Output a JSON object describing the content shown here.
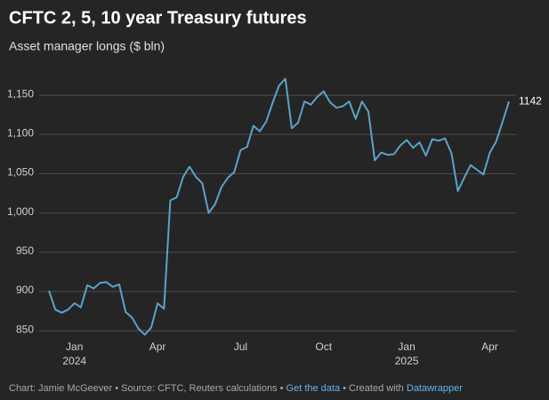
{
  "chart_data": {
    "type": "line",
    "title": "CFTC 2, 5, 10 year Treasury futures",
    "subtitle": "Asset manager longs ($ bln)",
    "categories": [
      null,
      null,
      null,
      null,
      "Jan",
      null,
      null,
      null,
      null,
      null,
      null,
      null,
      null,
      null,
      null,
      null,
      null,
      "Apr",
      null,
      null,
      null,
      null,
      null,
      null,
      null,
      null,
      null,
      null,
      null,
      null,
      "Jul",
      null,
      null,
      null,
      null,
      null,
      null,
      null,
      null,
      null,
      null,
      null,
      null,
      "Oct",
      null,
      null,
      null,
      null,
      null,
      null,
      null,
      null,
      null,
      null,
      null,
      null,
      "Jan",
      null,
      null,
      null,
      null,
      null,
      null,
      null,
      null,
      null,
      null,
      null,
      null,
      "Apr",
      null,
      null,
      null
    ],
    "category_years": [
      null,
      null,
      null,
      null,
      "2024",
      null,
      null,
      null,
      null,
      null,
      null,
      null,
      null,
      null,
      null,
      null,
      null,
      null,
      null,
      null,
      null,
      null,
      null,
      null,
      null,
      null,
      null,
      null,
      null,
      null,
      null,
      null,
      null,
      null,
      null,
      null,
      null,
      null,
      null,
      null,
      null,
      null,
      null,
      null,
      null,
      null,
      null,
      null,
      null,
      null,
      null,
      null,
      null,
      null,
      null,
      null,
      "2025",
      null,
      null,
      null,
      null,
      null,
      null,
      null,
      null,
      null,
      null,
      null,
      null,
      null,
      null,
      null,
      null
    ],
    "series": [
      {
        "name": "Asset manager longs",
        "color": "#5ba3c9",
        "values": [
          901,
          877,
          873,
          877,
          885,
          880,
          908,
          904,
          911,
          912,
          906,
          909,
          874,
          867,
          853,
          845,
          854,
          885,
          878,
          1016,
          1020,
          1046,
          1059,
          1046,
          1038,
          1000,
          1011,
          1033,
          1045,
          1052,
          1080,
          1084,
          1111,
          1104,
          1116,
          1140,
          1162,
          1171,
          1108,
          1115,
          1142,
          1138,
          1148,
          1155,
          1141,
          1134,
          1136,
          1142,
          1120,
          1142,
          1129,
          1067,
          1077,
          1074,
          1075,
          1086,
          1093,
          1083,
          1090,
          1073,
          1094,
          1092,
          1095,
          1076,
          1028,
          1045,
          1061,
          1055,
          1049,
          1077,
          1091,
          1116,
          1142
        ]
      }
    ],
    "ylim": [
      840,
      1175
    ],
    "yticks": [
      850,
      900,
      950,
      {
        "value": 1000,
        "label": "1,000"
      },
      {
        "value": 1050,
        "label": "1,050"
      },
      {
        "value": 1100,
        "label": "1,100"
      },
      {
        "value": 1150,
        "label": "1,150"
      }
    ],
    "grid": true,
    "footer": {
      "credit": "Chart: Jamie McGeever • Source: CFTC, Reuters calculations •",
      "data_link": "Get the data",
      "created": "• Created with",
      "tool_link": "Datawrapper"
    }
  }
}
